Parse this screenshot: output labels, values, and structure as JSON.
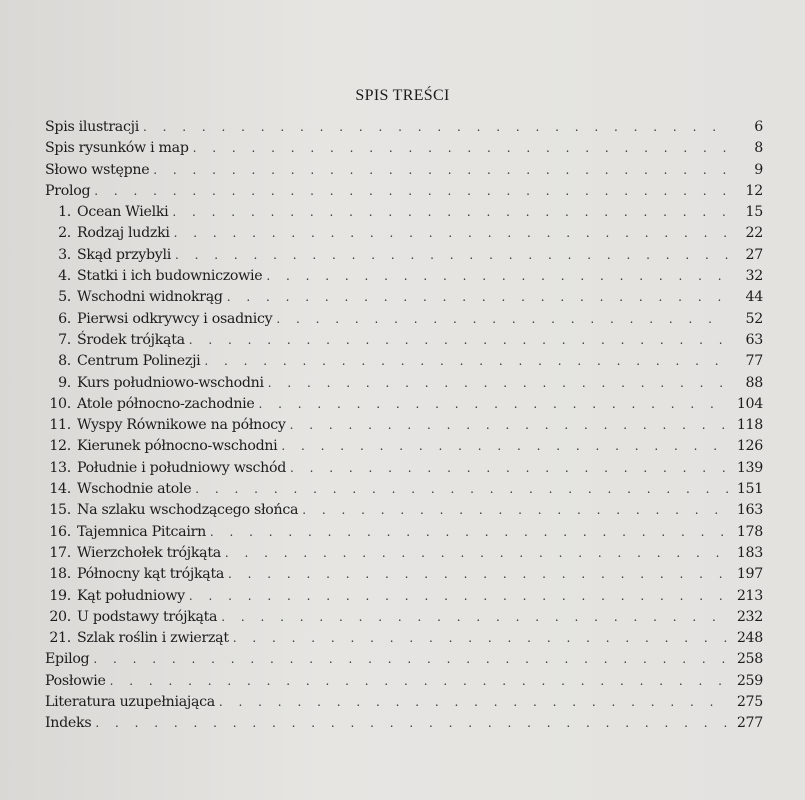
{
  "title": "SPIS TREŚCI",
  "entries": [
    {
      "num": "",
      "label": "Spis ilustracji",
      "page": "6"
    },
    {
      "num": "",
      "label": "Spis rysunków i map",
      "page": "8"
    },
    {
      "num": "",
      "label": "Słowo wstępne",
      "page": "9"
    },
    {
      "num": "",
      "label": "Prolog",
      "page": "12"
    },
    {
      "num": "1.",
      "label": "Ocean Wielki",
      "page": "15"
    },
    {
      "num": "2.",
      "label": "Rodzaj ludzki",
      "page": "22"
    },
    {
      "num": "3.",
      "label": "Skąd przybyli",
      "page": "27"
    },
    {
      "num": "4.",
      "label": "Statki i ich budowniczowie",
      "page": "32"
    },
    {
      "num": "5.",
      "label": "Wschodni widnokrąg",
      "page": "44"
    },
    {
      "num": "6.",
      "label": "Pierwsi odkrywcy i osadnicy",
      "page": "52"
    },
    {
      "num": "7.",
      "label": "Środek trójkąta",
      "page": "63"
    },
    {
      "num": "8.",
      "label": "Centrum Polinezji",
      "page": "77"
    },
    {
      "num": "9.",
      "label": "Kurs południowo-wschodni",
      "page": "88"
    },
    {
      "num": "10.",
      "label": "Atole północno-zachodnie",
      "page": "104"
    },
    {
      "num": "11.",
      "label": "Wyspy Równikowe na północy",
      "page": "118"
    },
    {
      "num": "12.",
      "label": "Kierunek północno-wschodni",
      "page": "126"
    },
    {
      "num": "13.",
      "label": "Południe i południowy wschód",
      "page": "139"
    },
    {
      "num": "14.",
      "label": "Wschodnie atole",
      "page": "151"
    },
    {
      "num": "15.",
      "label": "Na szlaku wschodzącego słońca",
      "page": "163"
    },
    {
      "num": "16.",
      "label": "Tajemnica Pitcairn",
      "page": "178"
    },
    {
      "num": "17.",
      "label": "Wierzchołek trójkąta",
      "page": "183"
    },
    {
      "num": "18.",
      "label": "Północny kąt trójkąta",
      "page": "197"
    },
    {
      "num": "19.",
      "label": "Kąt południowy",
      "page": "213"
    },
    {
      "num": "20.",
      "label": "U podstawy trójkąta",
      "page": "232"
    },
    {
      "num": "21.",
      "label": "Szlak roślin i zwierząt",
      "page": "248"
    },
    {
      "num": "",
      "label": "Epilog",
      "page": "258"
    },
    {
      "num": "",
      "label": "Posłowie",
      "page": "259"
    },
    {
      "num": "",
      "label": "Literatura uzupełniająca",
      "page": "275"
    },
    {
      "num": "",
      "label": "Indeks",
      "page": "277"
    }
  ]
}
